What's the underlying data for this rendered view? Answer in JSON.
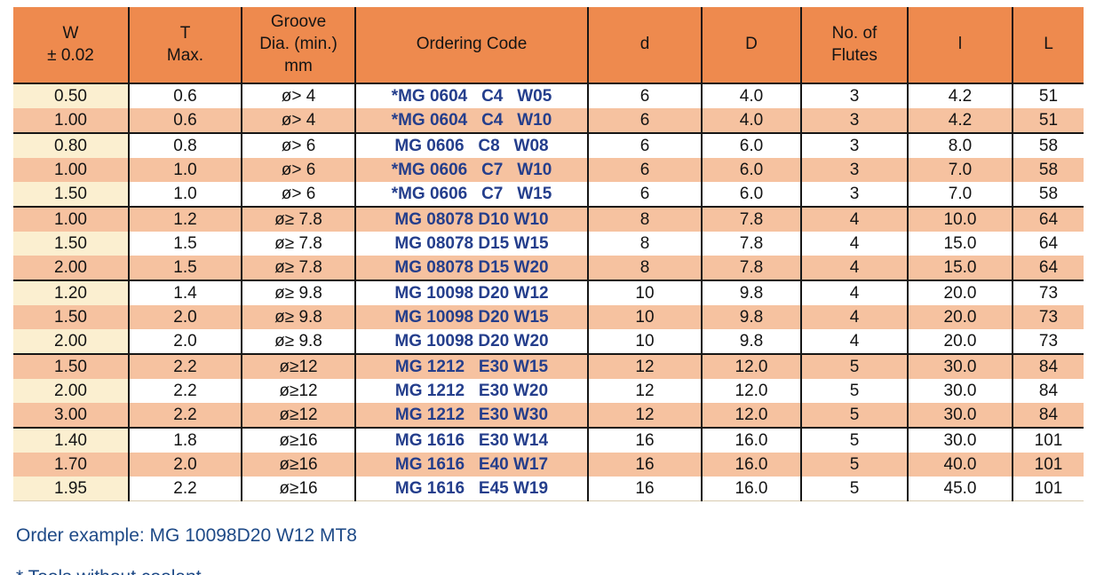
{
  "colors": {
    "header_orange": "#EE8A4E",
    "row_salmon": "#F6C2A0",
    "w_column_cream": "#FBEFD0",
    "ordering_code_navy": "#243E8C",
    "footer_navy": "#1E4A87"
  },
  "table": {
    "columns": [
      {
        "key": "w",
        "label": "W\n± 0.02"
      },
      {
        "key": "t",
        "label": "T\nMax."
      },
      {
        "key": "groove",
        "label": "Groove\nDia. (min.)\nmm"
      },
      {
        "key": "code",
        "label": "Ordering Code"
      },
      {
        "key": "d",
        "label": "d"
      },
      {
        "key": "dcap",
        "label": "D"
      },
      {
        "key": "flutes",
        "label": "No. of\nFlutes"
      },
      {
        "key": "l",
        "label": "l"
      },
      {
        "key": "lcap",
        "label": "L"
      }
    ],
    "rows": [
      {
        "shade": "light",
        "group_end": false,
        "cells": [
          "0.50",
          "0.6",
          "ø> 4",
          "*MG 0604   C4   W05",
          "6",
          "4.0",
          "3",
          "4.2",
          "51"
        ]
      },
      {
        "shade": "shaded",
        "group_end": true,
        "cells": [
          "1.00",
          "0.6",
          "ø> 4",
          "*MG 0604   C4   W10",
          "6",
          "4.0",
          "3",
          "4.2",
          "51"
        ]
      },
      {
        "shade": "light",
        "group_end": false,
        "cells": [
          "0.80",
          "0.8",
          "ø> 6",
          "MG 0606   C8   W08",
          "6",
          "6.0",
          "3",
          "8.0",
          "58"
        ]
      },
      {
        "shade": "shaded",
        "group_end": false,
        "cells": [
          "1.00",
          "1.0",
          "ø> 6",
          "*MG 0606   C7   W10",
          "6",
          "6.0",
          "3",
          "7.0",
          "58"
        ]
      },
      {
        "shade": "light",
        "group_end": true,
        "cells": [
          "1.50",
          "1.0",
          "ø> 6",
          "*MG 0606   C7   W15",
          "6",
          "6.0",
          "3",
          "7.0",
          "58"
        ]
      },
      {
        "shade": "shaded",
        "group_end": false,
        "cells": [
          "1.00",
          "1.2",
          "ø≥ 7.8",
          "MG 08078 D10 W10",
          "8",
          "7.8",
          "4",
          "10.0",
          "64"
        ]
      },
      {
        "shade": "light",
        "group_end": false,
        "cells": [
          "1.50",
          "1.5",
          "ø≥ 7.8",
          "MG 08078 D15 W15",
          "8",
          "7.8",
          "4",
          "15.0",
          "64"
        ]
      },
      {
        "shade": "shaded",
        "group_end": true,
        "cells": [
          "2.00",
          "1.5",
          "ø≥ 7.8",
          "MG 08078 D15 W20",
          "8",
          "7.8",
          "4",
          "15.0",
          "64"
        ]
      },
      {
        "shade": "light",
        "group_end": false,
        "cells": [
          "1.20",
          "1.4",
          "ø≥ 9.8",
          "MG 10098 D20 W12",
          "10",
          "9.8",
          "4",
          "20.0",
          "73"
        ]
      },
      {
        "shade": "shaded",
        "group_end": false,
        "cells": [
          "1.50",
          "2.0",
          "ø≥ 9.8",
          "MG 10098 D20 W15",
          "10",
          "9.8",
          "4",
          "20.0",
          "73"
        ]
      },
      {
        "shade": "light",
        "group_end": true,
        "cells": [
          "2.00",
          "2.0",
          "ø≥ 9.8",
          "MG 10098 D20 W20",
          "10",
          "9.8",
          "4",
          "20.0",
          "73"
        ]
      },
      {
        "shade": "shaded",
        "group_end": false,
        "cells": [
          "1.50",
          "2.2",
          "ø≥12",
          "MG 1212   E30 W15",
          "12",
          "12.0",
          "5",
          "30.0",
          "84"
        ]
      },
      {
        "shade": "light",
        "group_end": false,
        "cells": [
          "2.00",
          "2.2",
          "ø≥12",
          "MG 1212   E30 W20",
          "12",
          "12.0",
          "5",
          "30.0",
          "84"
        ]
      },
      {
        "shade": "shaded",
        "group_end": true,
        "cells": [
          "3.00",
          "2.2",
          "ø≥12",
          "MG 1212   E30 W30",
          "12",
          "12.0",
          "5",
          "30.0",
          "84"
        ]
      },
      {
        "shade": "light",
        "group_end": false,
        "cells": [
          "1.40",
          "1.8",
          "ø≥16",
          "MG 1616   E30 W14",
          "16",
          "16.0",
          "5",
          "30.0",
          "101"
        ]
      },
      {
        "shade": "shaded",
        "group_end": false,
        "cells": [
          "1.70",
          "2.0",
          "ø≥16",
          "MG 1616   E40 W17",
          "16",
          "16.0",
          "5",
          "40.0",
          "101"
        ]
      },
      {
        "shade": "light",
        "group_end": false,
        "cells": [
          "1.95",
          "2.2",
          "ø≥16",
          "MG 1616   E45 W19",
          "16",
          "16.0",
          "5",
          "45.0",
          "101"
        ]
      }
    ]
  },
  "notes": {
    "order_example": "Order example: MG 10098D20 W12 MT8",
    "coolant_note": "* Tools without coolant"
  }
}
